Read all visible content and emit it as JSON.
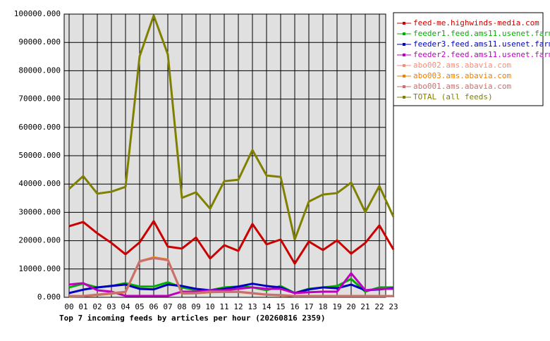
{
  "chart_data": {
    "type": "line",
    "title": "Top 7 incoming feeds by articles per hour (20260816 2359)",
    "categories": [
      "00",
      "01",
      "02",
      "03",
      "04",
      "05",
      "06",
      "07",
      "08",
      "09",
      "10",
      "11",
      "12",
      "13",
      "14",
      "15",
      "16",
      "17",
      "18",
      "19",
      "20",
      "21",
      "22",
      "23"
    ],
    "ylim": [
      0,
      100000
    ],
    "yticks": [
      {
        "value": 0,
        "label": "0.000"
      },
      {
        "value": 10000,
        "label": "10000.000"
      },
      {
        "value": 20000,
        "label": "20000.000"
      },
      {
        "value": 30000,
        "label": "30000.000"
      },
      {
        "value": 40000,
        "label": "40000.000"
      },
      {
        "value": 50000,
        "label": "50000.000"
      },
      {
        "value": 60000,
        "label": "60000.000"
      },
      {
        "value": 70000,
        "label": "70000.000"
      },
      {
        "value": 80000,
        "label": "80000.000"
      },
      {
        "value": 90000,
        "label": "90000.000"
      },
      {
        "value": 100000,
        "label": "100000.000"
      }
    ],
    "grid": true,
    "series": [
      {
        "name": "feed-me.highwinds-media.com",
        "color": "#cc0000",
        "values": [
          25100,
          26600,
          22600,
          19200,
          15200,
          19400,
          26900,
          17900,
          17200,
          21100,
          13700,
          18400,
          16400,
          25900,
          18700,
          20400,
          11900,
          19700,
          16700,
          20100,
          15400,
          19200,
          25400,
          16900
        ]
      },
      {
        "name": "feeder1.feed.ams11.usenet.farm",
        "color": "#00b000",
        "values": [
          3500,
          4800,
          3500,
          4000,
          5000,
          3800,
          3800,
          5300,
          3500,
          2500,
          2500,
          3500,
          3800,
          3500,
          2500,
          4000,
          1500,
          3000,
          3500,
          4000,
          6500,
          2000,
          3500,
          3500
        ]
      },
      {
        "name": "feeder3.feed.ams11.usenet.farm",
        "color": "#0000c0",
        "values": [
          1500,
          2700,
          3500,
          4000,
          4500,
          3000,
          2800,
          4500,
          4000,
          3000,
          2500,
          3000,
          3800,
          4800,
          4000,
          3500,
          1500,
          2800,
          3500,
          3200,
          4500,
          2500,
          2800,
          3200
        ]
      },
      {
        "name": "feeder2.feed.ams11.usenet.farm",
        "color": "#c000c0",
        "values": [
          4500,
          5000,
          2500,
          2000,
          500,
          500,
          500,
          500,
          2000,
          2000,
          2500,
          2500,
          3000,
          3500,
          3000,
          3000,
          1500,
          1800,
          2000,
          2000,
          8500,
          2500,
          3000,
          3000
        ]
      },
      {
        "name": "abo002.ams.abavia.com",
        "color": "#f09080",
        "values": [
          500,
          500,
          1000,
          1500,
          2000,
          12500,
          14000,
          13000,
          1500,
          1500,
          2000,
          2000,
          2000,
          1500,
          1000,
          800,
          500,
          500,
          500,
          500,
          500,
          500,
          500,
          500
        ]
      },
      {
        "name": "abo003.ams.abavia.com",
        "color": "#f08000",
        "values": [
          300,
          400,
          800,
          1300,
          1800,
          12700,
          14100,
          13300,
          1300,
          1400,
          1800,
          1900,
          1900,
          1400,
          900,
          700,
          400,
          400,
          400,
          400,
          400,
          400,
          400,
          400
        ]
      },
      {
        "name": "abo001.ams.abavia.com",
        "color": "#c87070",
        "values": [
          400,
          450,
          900,
          1400,
          1900,
          12800,
          13800,
          13200,
          1400,
          1450,
          1900,
          1950,
          1950,
          1450,
          950,
          750,
          450,
          450,
          450,
          450,
          450,
          450,
          450,
          450
        ]
      },
      {
        "name": "TOTAL (all feeds)",
        "color": "#808000",
        "values": [
          38300,
          42800,
          36600,
          37300,
          39000,
          85100,
          99500,
          85800,
          35100,
          37100,
          31300,
          41000,
          41500,
          52000,
          43000,
          42500,
          20400,
          33800,
          36300,
          36800,
          40500,
          30100,
          39300,
          28400
        ]
      }
    ]
  }
}
